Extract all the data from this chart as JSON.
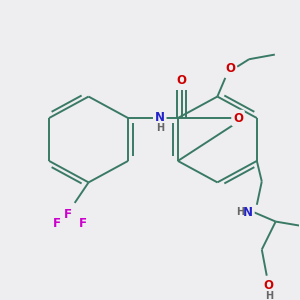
{
  "background_color": "#eeeef0",
  "bond_color": "#3a7a65",
  "bond_width": 1.4,
  "atom_colors": {
    "O": "#cc0000",
    "N": "#2222cc",
    "F": "#cc00cc",
    "H": "#666666",
    "C": "#3a7a65"
  },
  "font_size_atom": 8.5,
  "font_size_h": 7.0,
  "fig_width": 3.0,
  "fig_height": 3.0,
  "dpi": 100
}
